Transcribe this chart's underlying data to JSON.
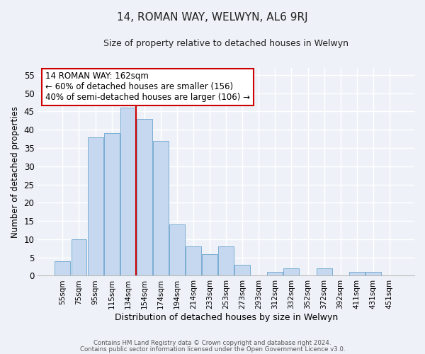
{
  "title1": "14, ROMAN WAY, WELWYN, AL6 9RJ",
  "title2": "Size of property relative to detached houses in Welwyn",
  "xlabel": "Distribution of detached houses by size in Welwyn",
  "ylabel": "Number of detached properties",
  "bar_labels": [
    "55sqm",
    "75sqm",
    "95sqm",
    "115sqm",
    "134sqm",
    "154sqm",
    "174sqm",
    "194sqm",
    "214sqm",
    "233sqm",
    "253sqm",
    "273sqm",
    "293sqm",
    "312sqm",
    "332sqm",
    "352sqm",
    "372sqm",
    "392sqm",
    "411sqm",
    "431sqm",
    "451sqm"
  ],
  "bar_values": [
    4,
    10,
    38,
    39,
    46,
    43,
    37,
    14,
    8,
    6,
    8,
    3,
    0,
    1,
    2,
    0,
    2,
    0,
    1,
    1,
    0
  ],
  "bar_color": "#c5d8ef",
  "bar_edge_color": "#7badd4",
  "reference_line_color": "#cc0000",
  "annotation_text": "14 ROMAN WAY: 162sqm\n← 60% of detached houses are smaller (156)\n40% of semi-detached houses are larger (106) →",
  "annotation_box_facecolor": "#ffffff",
  "annotation_box_edgecolor": "#cc0000",
  "ylim": [
    0,
    57
  ],
  "yticks": [
    0,
    5,
    10,
    15,
    20,
    25,
    30,
    35,
    40,
    45,
    50,
    55
  ],
  "footer1": "Contains HM Land Registry data © Crown copyright and database right 2024.",
  "footer2": "Contains public sector information licensed under the Open Government Licence v3.0.",
  "fig_bg_color": "#eef2f8",
  "plot_bg_color": "#eef2f8",
  "grid_color": "#ffffff",
  "title1_fontsize": 11,
  "title2_fontsize": 9,
  "xlabel_fontsize": 9,
  "ylabel_fontsize": 8.5
}
